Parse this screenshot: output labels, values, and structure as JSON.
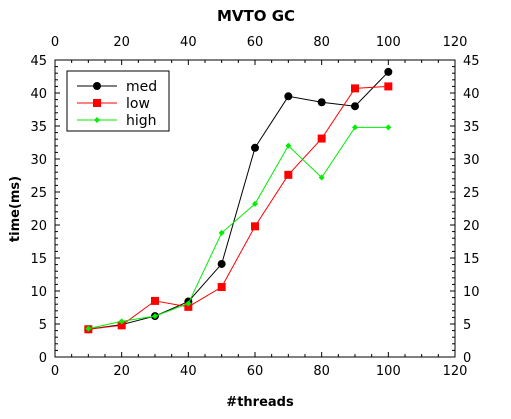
{
  "chart_data": {
    "type": "line",
    "title": "MVTO GC",
    "xlabel": "#threads",
    "ylabel": "time(ms)",
    "xlim": [
      0,
      120
    ],
    "ylim": [
      0,
      45
    ],
    "x_ticks": [
      "0",
      "20",
      "40",
      "60",
      "80",
      "100",
      "120"
    ],
    "y_ticks": [
      "0",
      "5",
      "10",
      "15",
      "20",
      "25",
      "30",
      "35",
      "40",
      "45"
    ],
    "mirror_axes": true,
    "grid": false,
    "legend_position": "top-left",
    "x": [
      10,
      20,
      30,
      40,
      50,
      60,
      70,
      80,
      90,
      100
    ],
    "series": [
      {
        "name": "med",
        "color": "#000000",
        "marker": "circle",
        "values": [
          4.2,
          4.9,
          6.2,
          8.4,
          14.1,
          31.7,
          39.5,
          38.6,
          38.0,
          43.2
        ]
      },
      {
        "name": "low",
        "color": "#ff0000",
        "marker": "square",
        "values": [
          4.2,
          4.8,
          8.5,
          7.6,
          10.6,
          19.8,
          27.6,
          33.1,
          40.7,
          41.0
        ]
      },
      {
        "name": "high",
        "color": "#00ee00",
        "marker": "diamond",
        "values": [
          4.3,
          5.4,
          6.2,
          8.1,
          18.8,
          23.2,
          32.0,
          27.2,
          34.8,
          34.8
        ]
      }
    ]
  }
}
